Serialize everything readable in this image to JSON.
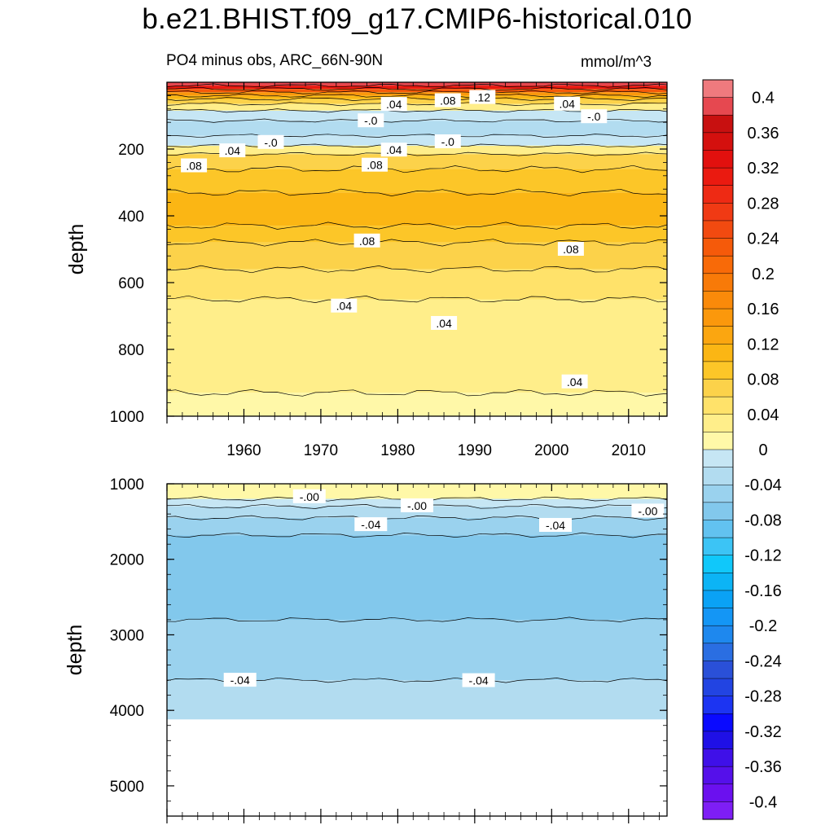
{
  "title": "b.e21.BHIST.f09_g17.CMIP6-historical.010",
  "subtitle": "PO4 minus obs, ARC_66N-90N",
  "units": "mmol/m^3",
  "chart_data": {
    "type": "heatmap",
    "variable": "PO4 minus obs",
    "region": "ARC_66N-90N",
    "units": "mmol/m^3",
    "x_range": [
      1950,
      2015
    ],
    "x_ticks": [
      "1960",
      "1970",
      "1980",
      "1990",
      "2000",
      "2010"
    ],
    "ylabel": "depth",
    "colorbar": {
      "levels": [
        -0.42,
        -0.4,
        -0.38,
        -0.36,
        -0.34,
        -0.32,
        -0.3,
        -0.28,
        -0.26,
        -0.24,
        -0.22,
        -0.2,
        -0.18,
        -0.16,
        -0.14,
        -0.12,
        -0.1,
        -0.08,
        -0.06,
        -0.04,
        -0.02,
        0.0,
        0.02,
        0.04,
        0.06,
        0.08,
        0.1,
        0.12,
        0.14,
        0.16,
        0.18,
        0.2,
        0.22,
        0.24,
        0.26,
        0.28,
        0.3,
        0.32,
        0.34,
        0.36,
        0.38,
        0.4,
        0.42
      ],
      "colors": [
        "#7e1ef5",
        "#6b10ef",
        "#5510ea",
        "#3f10e8",
        "#1f10e6",
        "#0a0aff",
        "#1c34f2",
        "#2244e2",
        "#2a50d8",
        "#2a6ee2",
        "#1e88ee",
        "#1496f5",
        "#0aa2f5",
        "#0cb4f5",
        "#10c8fa",
        "#3cc4f5",
        "#62c2f0",
        "#82c8ec",
        "#9ad2ee",
        "#b2dcf0",
        "#c6e6f4",
        "#fff8a8",
        "#ffee8a",
        "#ffe26a",
        "#fcd24a",
        "#fcc628",
        "#fbb614",
        "#fba610",
        "#fb980c",
        "#fa8a0a",
        "#f87a08",
        "#f86a08",
        "#f55a0a",
        "#f24a10",
        "#f03a14",
        "#ee2a14",
        "#ea1a10",
        "#e2100e",
        "#d4100e",
        "#c81010",
        "#e64850",
        "#ef7a7e"
      ],
      "labels": [
        "0.4",
        "0.36",
        "0.32",
        "0.28",
        "0.24",
        "0.2",
        "0.16",
        "0.12",
        "0.08",
        "0.04",
        "0",
        "-0.04",
        "-0.08",
        "-0.12",
        "-0.16",
        "-0.2",
        "-0.24",
        "-0.28",
        "-0.32",
        "-0.36",
        "-0.4"
      ]
    },
    "panels": [
      {
        "name": "upper-panel",
        "ylim": [
          0,
          1000
        ],
        "y_ticks": [
          "200",
          "400",
          "600",
          "800",
          "1000"
        ],
        "ylabel": "depth",
        "layers": [
          {
            "top": 0,
            "bottom": 10,
            "value": 0.38
          },
          {
            "top": 10,
            "bottom": 20,
            "value": 0.3
          },
          {
            "top": 20,
            "bottom": 30,
            "value": 0.22
          },
          {
            "top": 30,
            "bottom": 40,
            "value": 0.15
          },
          {
            "top": 40,
            "bottom": 50,
            "value": 0.1
          },
          {
            "top": 50,
            "bottom": 65,
            "value": 0.07
          },
          {
            "top": 65,
            "bottom": 85,
            "value": 0.03
          },
          {
            "top": 85,
            "bottom": 115,
            "value": -0.01
          },
          {
            "top": 115,
            "bottom": 160,
            "value": -0.03
          },
          {
            "top": 160,
            "bottom": 190,
            "value": -0.01
          },
          {
            "top": 190,
            "bottom": 215,
            "value": 0.03
          },
          {
            "top": 215,
            "bottom": 260,
            "value": 0.07
          },
          {
            "top": 260,
            "bottom": 330,
            "value": 0.09
          },
          {
            "top": 330,
            "bottom": 430,
            "value": 0.11
          },
          {
            "top": 430,
            "bottom": 480,
            "value": 0.09
          },
          {
            "top": 480,
            "bottom": 560,
            "value": 0.07
          },
          {
            "top": 560,
            "bottom": 650,
            "value": 0.05
          },
          {
            "top": 650,
            "bottom": 930,
            "value": 0.03
          },
          {
            "top": 930,
            "bottom": 1000,
            "value": 0.01
          }
        ],
        "contour_labels": [
          {
            "text": ".04",
            "x": 1979.5,
            "y": 66
          },
          {
            "text": ".08",
            "x": 1986.5,
            "y": 55
          },
          {
            "text": ".12",
            "x": 1991,
            "y": 45
          },
          {
            "text": ".04",
            "x": 2002,
            "y": 65
          },
          {
            "text": "-.0",
            "x": 1976.5,
            "y": 115
          },
          {
            "text": "-.0",
            "x": 2005.5,
            "y": 103
          },
          {
            "text": "-.0",
            "x": 1963.5,
            "y": 180
          },
          {
            "text": "-.0",
            "x": 1986.5,
            "y": 178
          },
          {
            "text": ".04",
            "x": 1958.5,
            "y": 205
          },
          {
            "text": ".04",
            "x": 1979.5,
            "y": 203
          },
          {
            "text": ".08",
            "x": 1953.5,
            "y": 250
          },
          {
            "text": ".08",
            "x": 1977,
            "y": 248
          },
          {
            "text": ".08",
            "x": 1976,
            "y": 475
          },
          {
            "text": ".08",
            "x": 2002.5,
            "y": 500
          },
          {
            "text": ".04",
            "x": 1973,
            "y": 670
          },
          {
            "text": ".04",
            "x": 1986,
            "y": 722
          },
          {
            "text": ".04",
            "x": 2003,
            "y": 897
          }
        ]
      },
      {
        "name": "lower-panel",
        "ylim": [
          1000,
          5400
        ],
        "y_ticks": [
          "1000",
          "2000",
          "3000",
          "4000",
          "5000"
        ],
        "ylabel": "depth",
        "data_max_depth": 4120,
        "layers": [
          {
            "top": 1000,
            "bottom": 1200,
            "value": 0.01
          },
          {
            "top": 1200,
            "bottom": 1300,
            "value": -0.01
          },
          {
            "top": 1300,
            "bottom": 1450,
            "value": -0.03
          },
          {
            "top": 1450,
            "bottom": 1680,
            "value": -0.05
          },
          {
            "top": 1680,
            "bottom": 2800,
            "value": -0.07
          },
          {
            "top": 2800,
            "bottom": 3600,
            "value": -0.05
          },
          {
            "top": 3600,
            "bottom": 4120,
            "value": -0.03
          }
        ],
        "contour_labels": [
          {
            "text": "-.00",
            "x": 1968.5,
            "y": 1170
          },
          {
            "text": "-.00",
            "x": 1982.5,
            "y": 1290
          },
          {
            "text": "-.00",
            "x": 2012.5,
            "y": 1360
          },
          {
            "text": "-.04",
            "x": 1976.5,
            "y": 1540
          },
          {
            "text": "-.04",
            "x": 2000.5,
            "y": 1550
          },
          {
            "text": "-.04",
            "x": 1959.5,
            "y": 3600
          },
          {
            "text": "-.04",
            "x": 1990.5,
            "y": 3605
          }
        ]
      }
    ]
  }
}
